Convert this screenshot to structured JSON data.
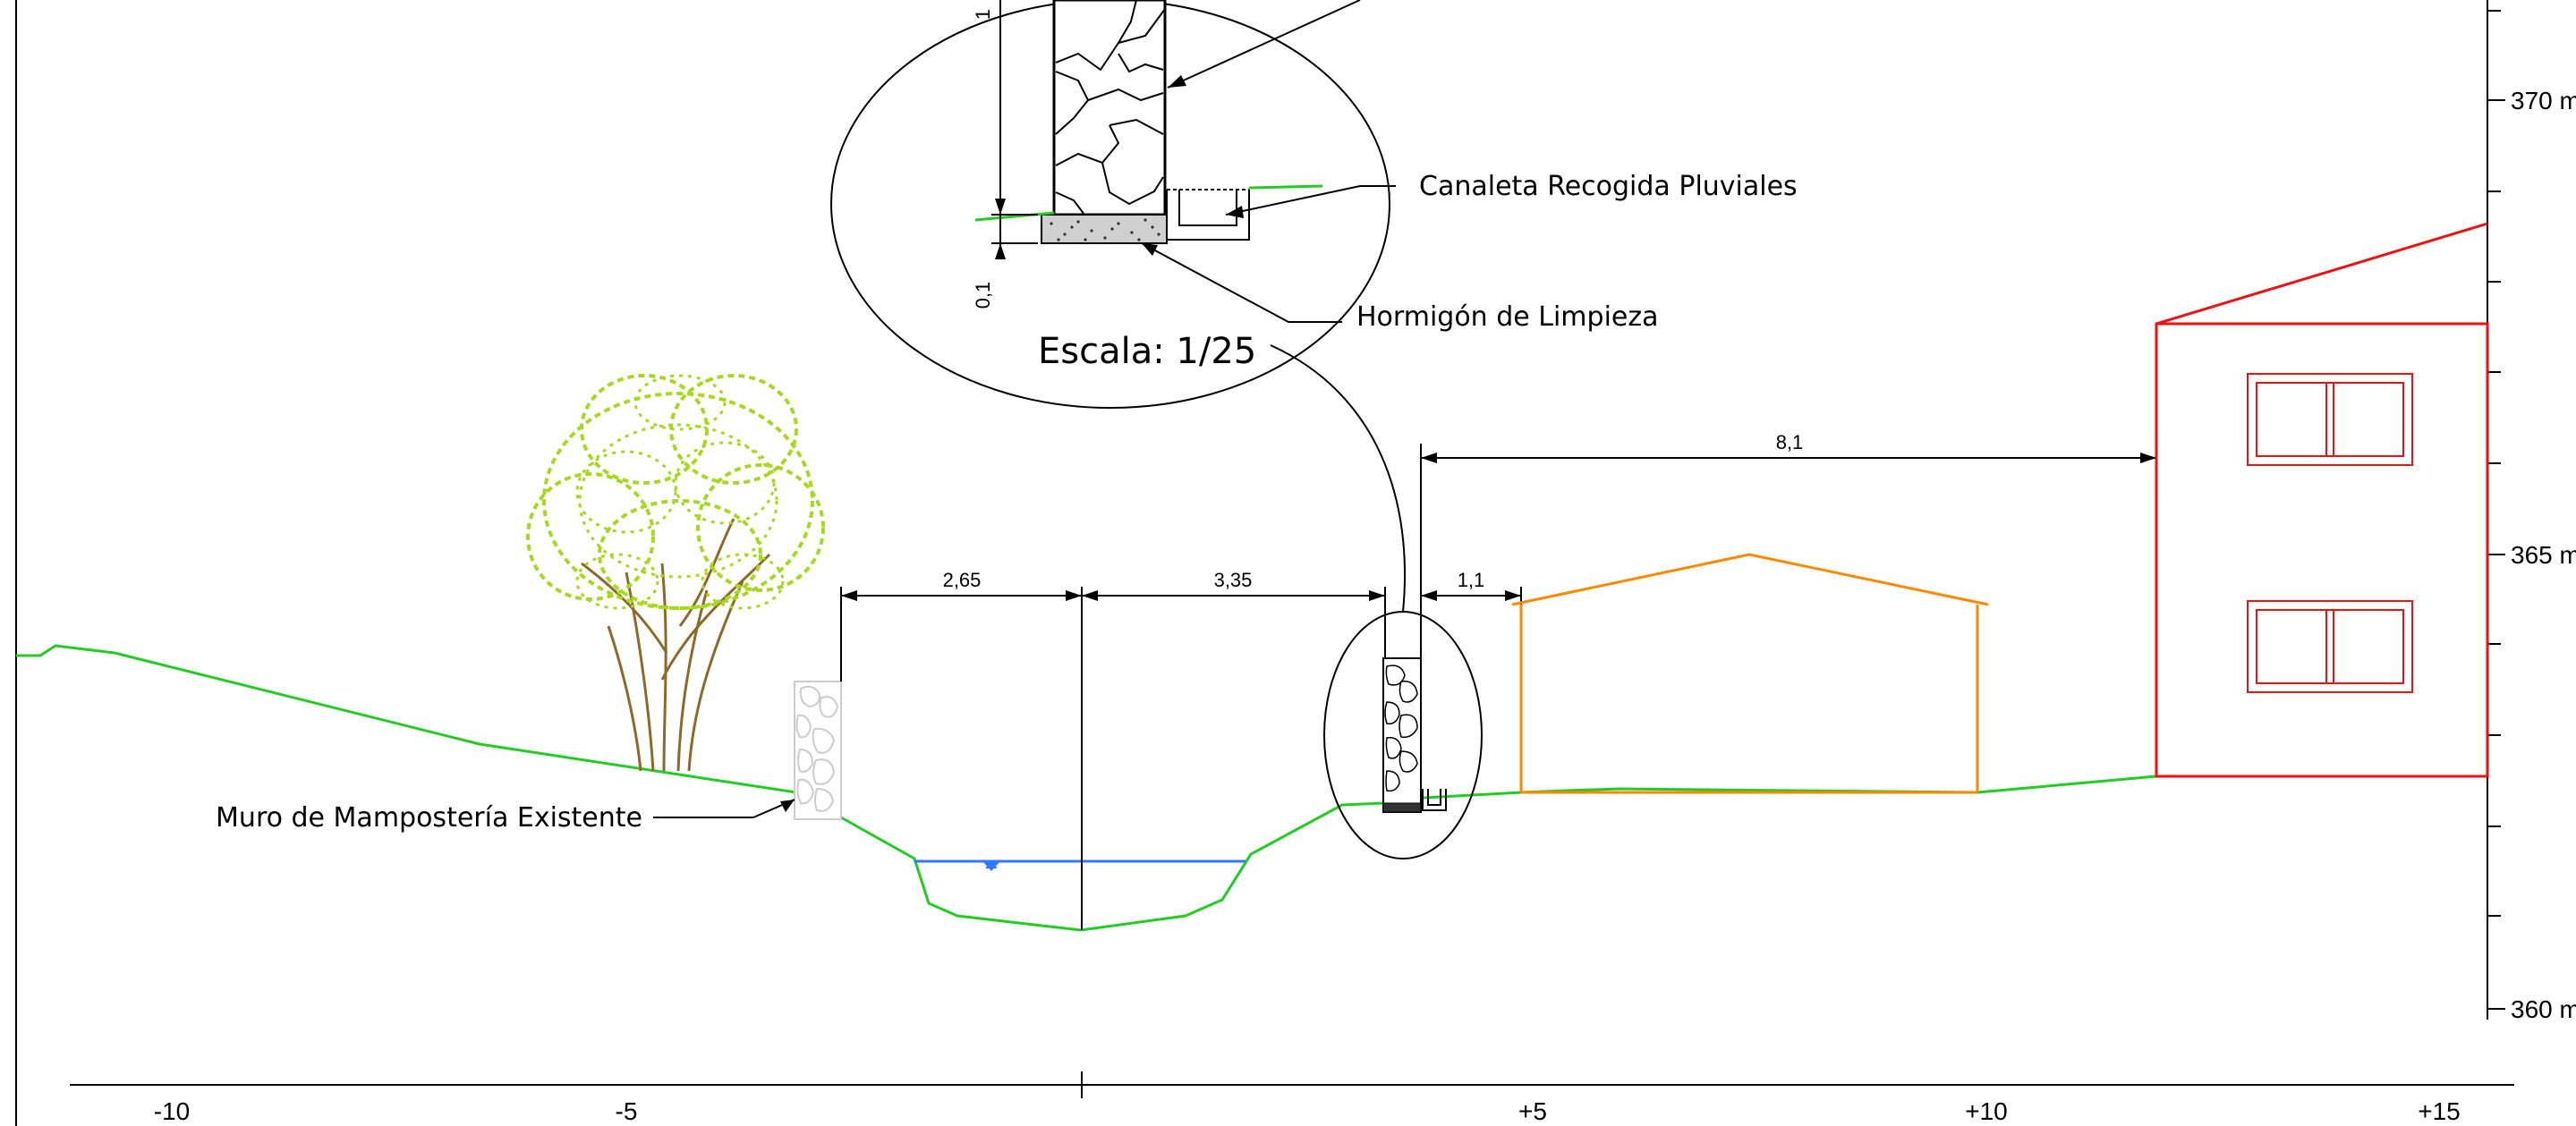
{
  "annotations": {
    "detail_scale": "Escala: 1/25",
    "gutter_label": "Canaleta Recogida Pluviales",
    "lean_concrete_label": "Hormigón de Limpieza",
    "existing_wall_label": "Muro de Mampostería Existente",
    "detail_dim_vertical": "1",
    "detail_dim_footing": "0,1"
  },
  "dimensions": {
    "d1": "2,65",
    "d2": "3,35",
    "d3": "1,1",
    "d4": "8,1"
  },
  "elevation_axis": {
    "labels": [
      "370 m",
      "365 m",
      "360 m"
    ]
  },
  "horizontal_axis": {
    "labels": [
      "-10",
      "-5",
      "+5",
      "+10",
      "+15"
    ]
  },
  "colors": {
    "terrain": "#22cc22",
    "water": "#3377ff",
    "shed": "#ff8800",
    "house": "#ee1111",
    "tree_foliage": "#a8d820",
    "tree_trunk": "#8b6a2a",
    "wall": "#cccccc"
  }
}
